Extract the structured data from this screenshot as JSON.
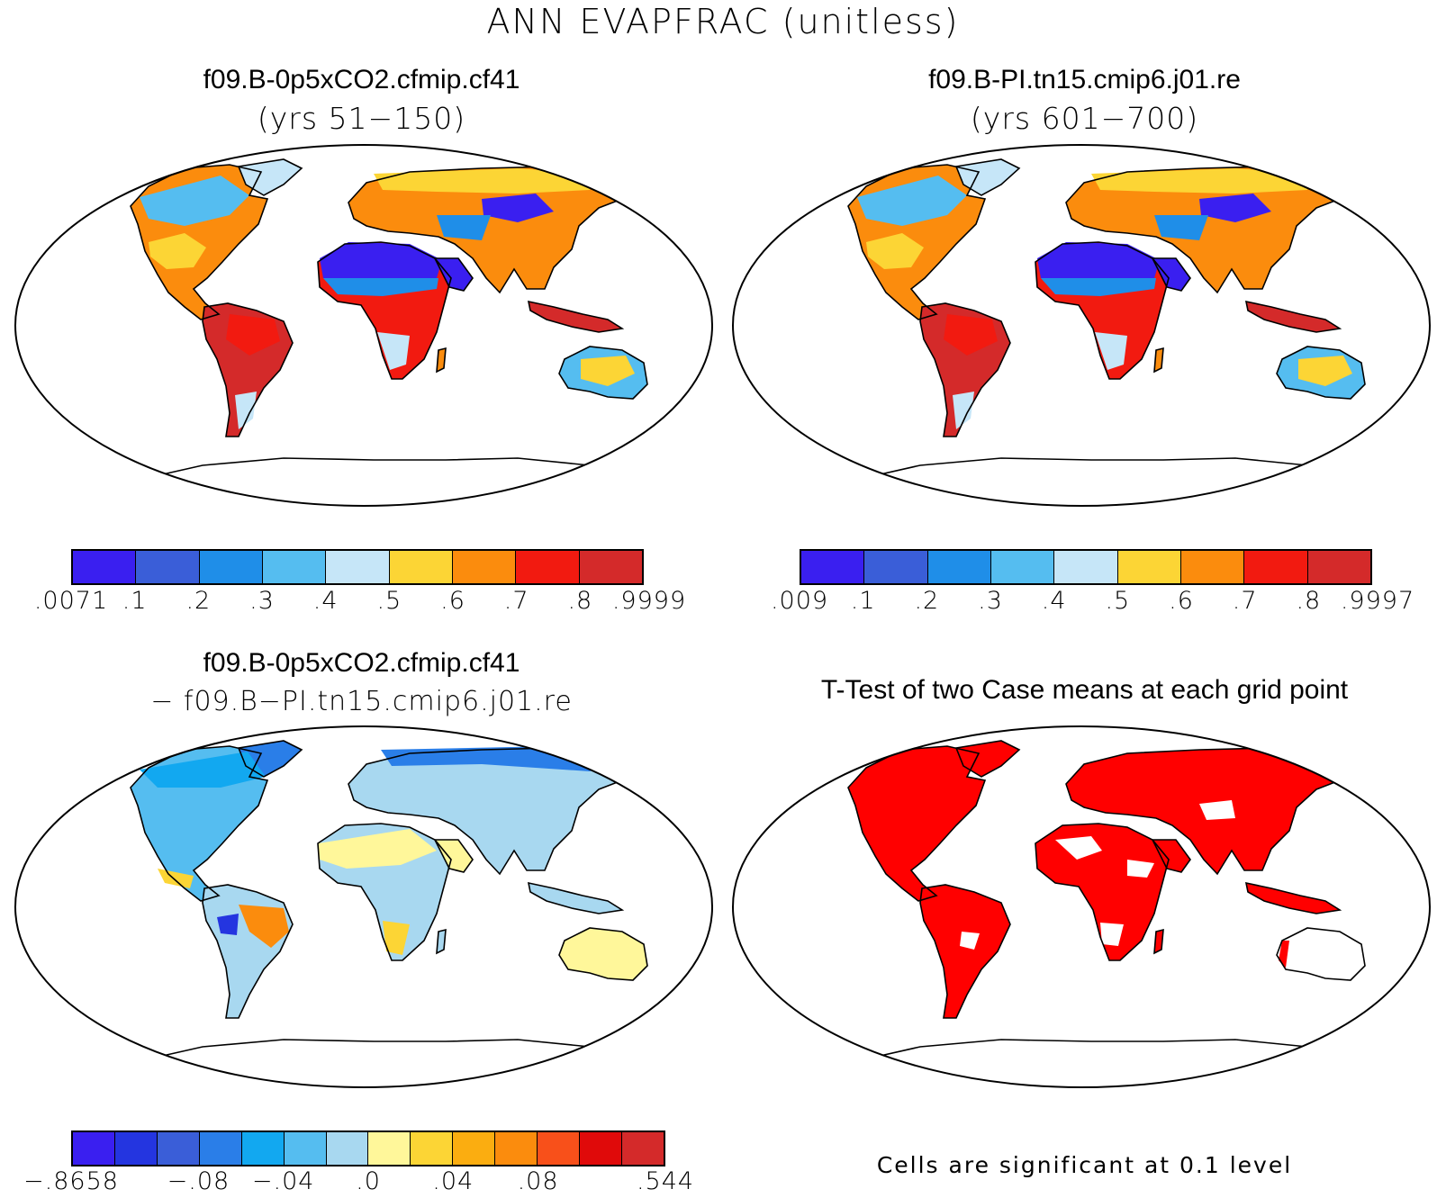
{
  "title": "ANN EVAPFRAC (unitless)",
  "panels": {
    "case1": {
      "case_title": "f09.B-0p5xCO2.cfmip.cf41",
      "years": "(yrs 51−150)",
      "colorbar": {
        "colors": [
          "#3a1ff0",
          "#3a5ed8",
          "#1f8ee8",
          "#55bdf0",
          "#c6e6f8",
          "#fcd535",
          "#fb8c0d",
          "#f21a10",
          "#d42a2a"
        ],
        "tick_labels": [
          ".0071",
          ".1",
          ".2",
          ".3",
          ".4",
          ".5",
          ".6",
          ".7",
          ".8",
          ".9999"
        ]
      }
    },
    "case2": {
      "case_title": "f09.B-PI.tn15.cmip6.j01.re",
      "years": "(yrs 601−700)",
      "colorbar": {
        "colors": [
          "#3a1ff0",
          "#3a5ed8",
          "#1f8ee8",
          "#55bdf0",
          "#c6e6f8",
          "#fcd535",
          "#fb8c0d",
          "#f21a10",
          "#d42a2a"
        ],
        "tick_labels": [
          ".009",
          ".1",
          ".2",
          ".3",
          ".4",
          ".5",
          ".6",
          ".7",
          ".8",
          ".9997"
        ]
      }
    },
    "diff": {
      "case_title": "f09.B-0p5xCO2.cfmip.cf41",
      "subtitle": "− f09.B−PI.tn15.cmip6.j01.re",
      "colorbar": {
        "colors": [
          "#3a1ff0",
          "#2435e0",
          "#3a5ed8",
          "#2a7ee8",
          "#12a8f0",
          "#55bdf0",
          "#a8d8f0",
          "#fff79a",
          "#fcd535",
          "#fbad10",
          "#fb8c0d",
          "#f8501a",
          "#e00a0a",
          "#d42a2a"
        ],
        "tick_labels": [
          "−.8658",
          "−.08",
          "−.04",
          ".0",
          ".04",
          ".08",
          ".544"
        ]
      }
    },
    "ttest": {
      "title": "T-Test of two Case means at each grid point",
      "note": "Cells are significant at 0.1 level",
      "significant_color": "#ff0000"
    }
  },
  "colors": {
    "ocean": "#ffffff",
    "coastline": "#000000"
  }
}
